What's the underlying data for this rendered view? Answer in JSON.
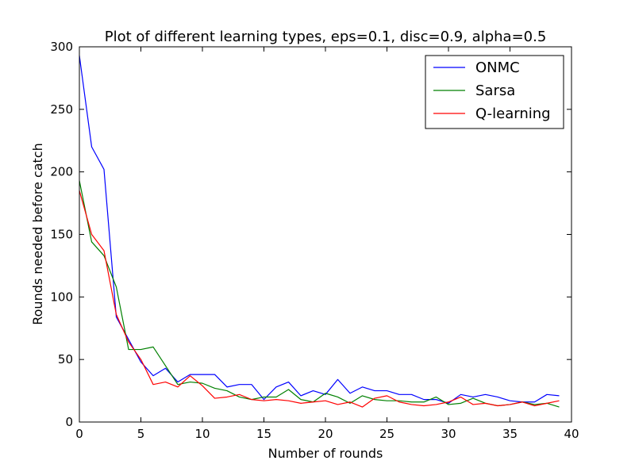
{
  "chart_data": {
    "type": "line",
    "title": "Plot of different learning types, eps=0.1, disc=0.9, alpha=0.5",
    "xlabel": "Number of rounds",
    "ylabel": "Rounds needed before catch",
    "xlim": [
      0,
      40
    ],
    "ylim": [
      0,
      300
    ],
    "xticks": [
      0,
      5,
      10,
      15,
      20,
      25,
      30,
      35,
      40
    ],
    "yticks": [
      0,
      50,
      100,
      150,
      200,
      250,
      300
    ],
    "grid": false,
    "legend_position": "top-right",
    "x": [
      0,
      1,
      2,
      3,
      4,
      5,
      6,
      7,
      8,
      9,
      10,
      11,
      12,
      13,
      14,
      15,
      16,
      17,
      18,
      19,
      20,
      21,
      22,
      23,
      24,
      25,
      26,
      27,
      28,
      29,
      30,
      31,
      32,
      33,
      34,
      35,
      36,
      37,
      38,
      39
    ],
    "series": [
      {
        "name": "ONMC",
        "color": "#0000ff",
        "values": [
          293,
          220,
          202,
          84,
          66,
          48,
          37,
          43,
          32,
          38,
          38,
          38,
          28,
          30,
          30,
          18,
          28,
          32,
          21,
          25,
          22,
          34,
          23,
          28,
          25,
          25,
          22,
          22,
          18,
          18,
          15,
          22,
          20,
          22,
          20,
          17,
          16,
          16,
          22,
          21
        ]
      },
      {
        "name": "Sarsa",
        "color": "#008000",
        "values": [
          193,
          144,
          133,
          108,
          58,
          58,
          60,
          45,
          30,
          32,
          31,
          27,
          25,
          20,
          18,
          20,
          20,
          26,
          18,
          16,
          23,
          20,
          15,
          21,
          18,
          17,
          17,
          16,
          16,
          20,
          14,
          15,
          19,
          15,
          13,
          14,
          16,
          14,
          15,
          12
        ]
      },
      {
        "name": "Q-learning",
        "color": "#ff0000",
        "values": [
          185,
          150,
          137,
          86,
          64,
          50,
          30,
          32,
          28,
          37,
          29,
          19,
          20,
          22,
          18,
          17,
          18,
          17,
          15,
          16,
          17,
          14,
          16,
          12,
          19,
          21,
          16,
          14,
          13,
          14,
          16,
          20,
          14,
          15,
          13,
          14,
          16,
          13,
          15,
          17
        ]
      }
    ]
  }
}
